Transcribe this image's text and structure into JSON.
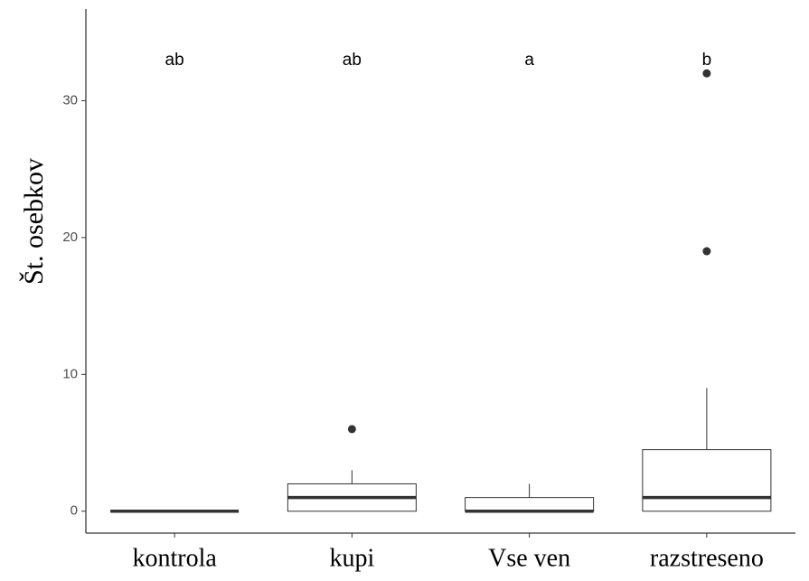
{
  "chart_data": {
    "type": "box",
    "y_label": "Št. osebkov",
    "categories": [
      "kontrola",
      "kupi",
      "Vse ven",
      "razstreseno"
    ],
    "boxes": [
      {
        "min": 0,
        "q1": 0,
        "median": 0,
        "q3": 0,
        "max": 0,
        "outliers": []
      },
      {
        "min": 0,
        "q1": 0,
        "median": 1,
        "q3": 2,
        "max": 3,
        "outliers": [
          6
        ]
      },
      {
        "min": 0,
        "q1": 0,
        "median": 0,
        "q3": 1,
        "max": 2,
        "outliers": []
      },
      {
        "min": 0,
        "q1": 0,
        "median": 1,
        "q3": 4.5,
        "max": 9,
        "outliers": [
          19,
          32
        ]
      }
    ],
    "group_letters": [
      "ab",
      "ab",
      "a",
      "b"
    ],
    "color": "#333333",
    "ylim": [
      -1.6,
      36.7
    ],
    "yticks": [
      0,
      10,
      20,
      30
    ],
    "grid": false
  }
}
